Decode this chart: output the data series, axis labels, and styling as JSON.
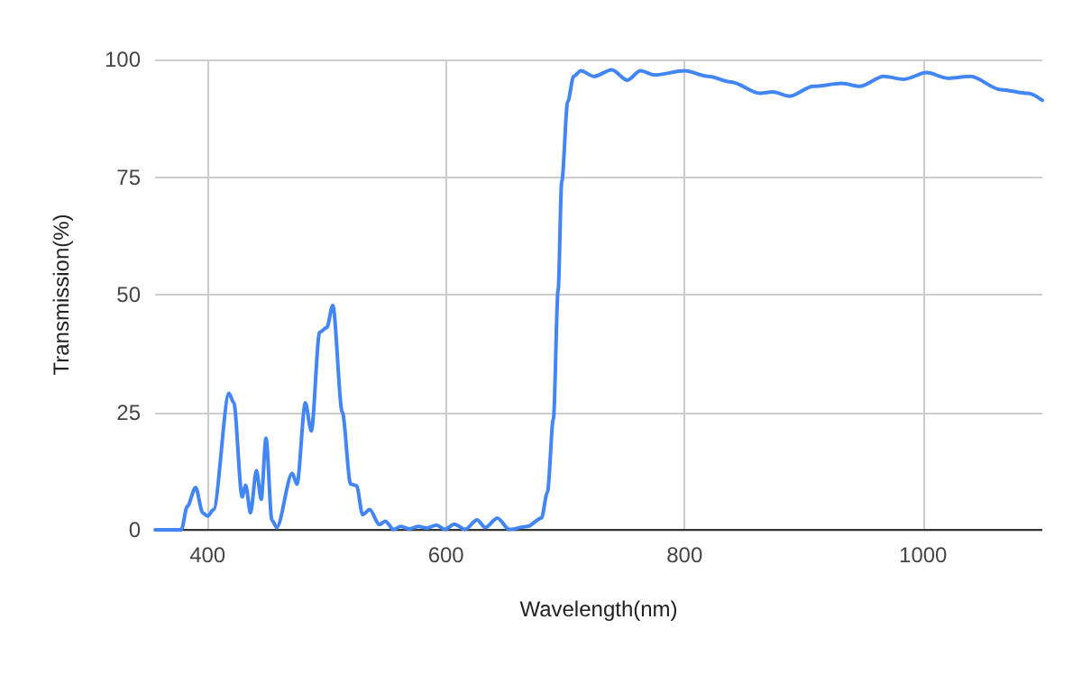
{
  "chart_data": {
    "type": "line",
    "xlabel": "Wavelength(nm)",
    "ylabel": "Transmission(%)",
    "xlim": [
      356,
      1100
    ],
    "xticks": [
      400,
      600,
      800,
      1000
    ],
    "ylim": [
      0,
      100
    ],
    "yticks": [
      0,
      25,
      50,
      75,
      100
    ],
    "grid": true,
    "marker": "none",
    "line_style": "solid",
    "series": [
      {
        "color": "#4285f4",
        "x": [
          356,
          374,
          378,
          383,
          390,
          396,
          400,
          405,
          418,
          422,
          429,
          432,
          436,
          441,
          445,
          449,
          454,
          458,
          471,
          475,
          482,
          487,
          494,
          500,
          505,
          513,
          520,
          525,
          530,
          536,
          544,
          549,
          556,
          562,
          569,
          577,
          584,
          592,
          599,
          607,
          616,
          626,
          633,
          643,
          653,
          668,
          680,
          685,
          690,
          694,
          697,
          702,
          707,
          713,
          724,
          739,
          752,
          763,
          775,
          800,
          820,
          839,
          863,
          874,
          888,
          908,
          932,
          947,
          967,
          984,
          1003,
          1021,
          1040,
          1065,
          1088,
          1100
        ],
        "values": [
          0,
          0,
          0,
          5,
          9,
          3.6,
          2.9,
          4.3,
          29,
          27,
          7,
          9.5,
          3.6,
          12.6,
          6.5,
          19.5,
          2,
          0.5,
          12,
          9.7,
          27,
          21,
          42,
          43,
          47.7,
          25,
          9.7,
          9.4,
          3.2,
          4.3,
          1.1,
          1.8,
          0.1,
          0.7,
          0.2,
          0.7,
          0.4,
          1,
          0.1,
          1.2,
          0.1,
          2.1,
          0.5,
          2.5,
          0.1,
          0.7,
          2.5,
          8,
          23.6,
          51,
          74,
          91,
          96.4,
          97.6,
          96.4,
          97.8,
          95.6,
          97.6,
          96.7,
          97.6,
          96.4,
          95.2,
          92.8,
          93.1,
          92.2,
          94.3,
          94.9,
          94.3,
          96.4,
          95.8,
          97.2,
          96,
          96.4,
          93.6,
          92.8,
          91.3
        ]
      }
    ]
  }
}
